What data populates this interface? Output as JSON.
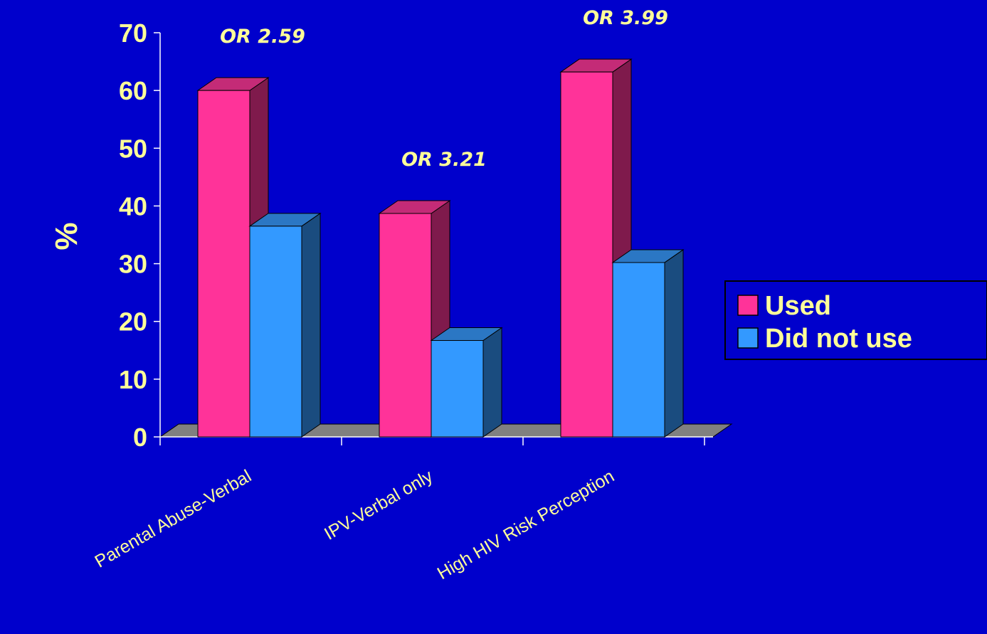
{
  "chart_data": {
    "type": "bar",
    "title": "",
    "xlabel": "",
    "ylabel": "%",
    "ylim": [
      0,
      70
    ],
    "yticks": [
      0,
      10,
      20,
      30,
      40,
      50,
      60,
      70
    ],
    "categories": [
      "Parental Abuse-Verbal",
      "IPV-Verbal only",
      "High HIV Risk Perception"
    ],
    "series": [
      {
        "name": "Used",
        "values": [
          60,
          38.7,
          63.2
        ],
        "color": "#FF3399",
        "side_color": "#7F1A4C",
        "top_color": "#C42B77"
      },
      {
        "name": "Did not use",
        "values": [
          36.5,
          16.7,
          30.2
        ],
        "color": "#3399FF",
        "side_color": "#1A4C7F",
        "top_color": "#2B77C4"
      }
    ],
    "annotations": [
      "OR 2.59",
      "OR 3.21",
      "OR 3.99"
    ],
    "legend_position": "right",
    "grid": false,
    "three_d": true,
    "background": "#0000CC",
    "text_color": "#FFFF99",
    "floor_color": "#808080"
  }
}
